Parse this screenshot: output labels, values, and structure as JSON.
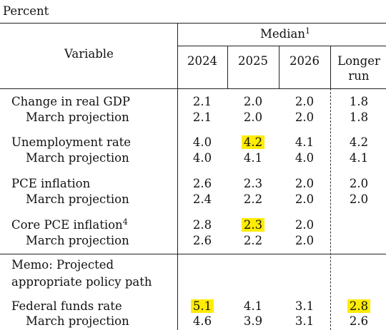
{
  "unit_label": "Percent",
  "header": {
    "variable": "Variable",
    "median": "Median",
    "median_note": "1",
    "years": [
      "2024",
      "2025",
      "2026"
    ],
    "longer_run_line1": "Longer",
    "longer_run_line2": "run"
  },
  "highlight_color": "#ffec00",
  "rows": [
    {
      "label": "Change in real GDP",
      "note": "",
      "values": [
        "2.1",
        "2.0",
        "2.0",
        "1.8"
      ]
    },
    {
      "label": "March projection",
      "note": "",
      "values": [
        "2.1",
        "2.0",
        "2.0",
        "1.8"
      ]
    },
    {
      "label": "Unemployment rate",
      "note": "",
      "values": [
        "4.0",
        "4.2",
        "4.1",
        "4.2"
      ]
    },
    {
      "label": "March projection",
      "note": "",
      "values": [
        "4.0",
        "4.1",
        "4.0",
        "4.1"
      ]
    },
    {
      "label": "PCE inflation",
      "note": "",
      "values": [
        "2.6",
        "2.3",
        "2.0",
        "2.0"
      ]
    },
    {
      "label": "March projection",
      "note": "",
      "values": [
        "2.4",
        "2.2",
        "2.0",
        "2.0"
      ]
    },
    {
      "label": "Core PCE inflation",
      "note": "4",
      "values": [
        "2.8",
        "2.3",
        "2.0",
        ""
      ]
    },
    {
      "label": "March projection",
      "note": "",
      "values": [
        "2.6",
        "2.2",
        "2.0",
        ""
      ]
    }
  ],
  "memo": {
    "line1": "Memo: Projected",
    "line2": "appropriate policy path"
  },
  "memo_rows": [
    {
      "label": "Federal funds rate",
      "values": [
        "5.1",
        "4.1",
        "3.1",
        "2.8"
      ]
    },
    {
      "label": "March projection",
      "values": [
        "4.6",
        "3.9",
        "3.1",
        "2.6"
      ]
    }
  ]
}
